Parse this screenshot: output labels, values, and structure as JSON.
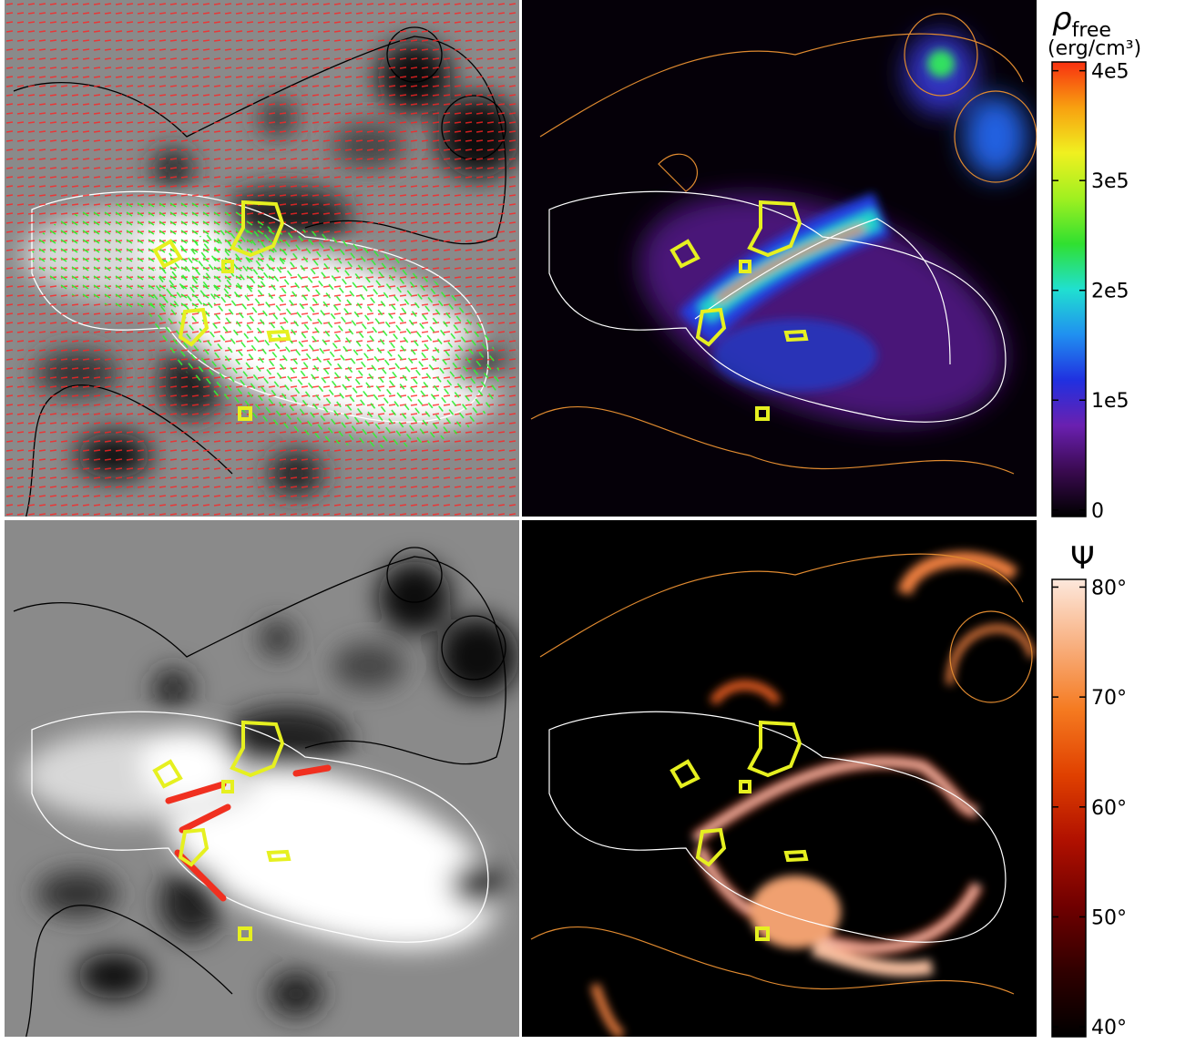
{
  "colorbars": [
    {
      "symbol": "ρ",
      "subscript": "free",
      "unit": "(erg/cm³)",
      "lim": [
        -6000,
        408000
      ],
      "ticks": [
        {
          "value": 0,
          "label": "0"
        },
        {
          "value": 100000,
          "label": "1e5"
        },
        {
          "value": 200000,
          "label": "2e5"
        },
        {
          "value": 300000,
          "label": "3e5"
        },
        {
          "value": 400000,
          "label": "4e5"
        }
      ],
      "colors": [
        "#000000",
        "#3a0a50",
        "#6a20b0",
        "#2030e0",
        "#2090f0",
        "#20e0d0",
        "#30e030",
        "#a0f020",
        "#f0f020",
        "#f8a010",
        "#f83010"
      ]
    },
    {
      "symbol": "Ψ",
      "lim": [
        39.1,
        80.7
      ],
      "ticks": [
        {
          "value": 40,
          "label": "40°"
        },
        {
          "value": 50,
          "label": "50°"
        },
        {
          "value": 60,
          "label": "60°"
        },
        {
          "value": 70,
          "label": "70°"
        },
        {
          "value": 80,
          "label": "80°"
        }
      ],
      "colors": [
        "#000000",
        "#300000",
        "#700000",
        "#b01000",
        "#e04000",
        "#f57a20",
        "#f8b080",
        "#fde8dc"
      ]
    }
  ]
}
